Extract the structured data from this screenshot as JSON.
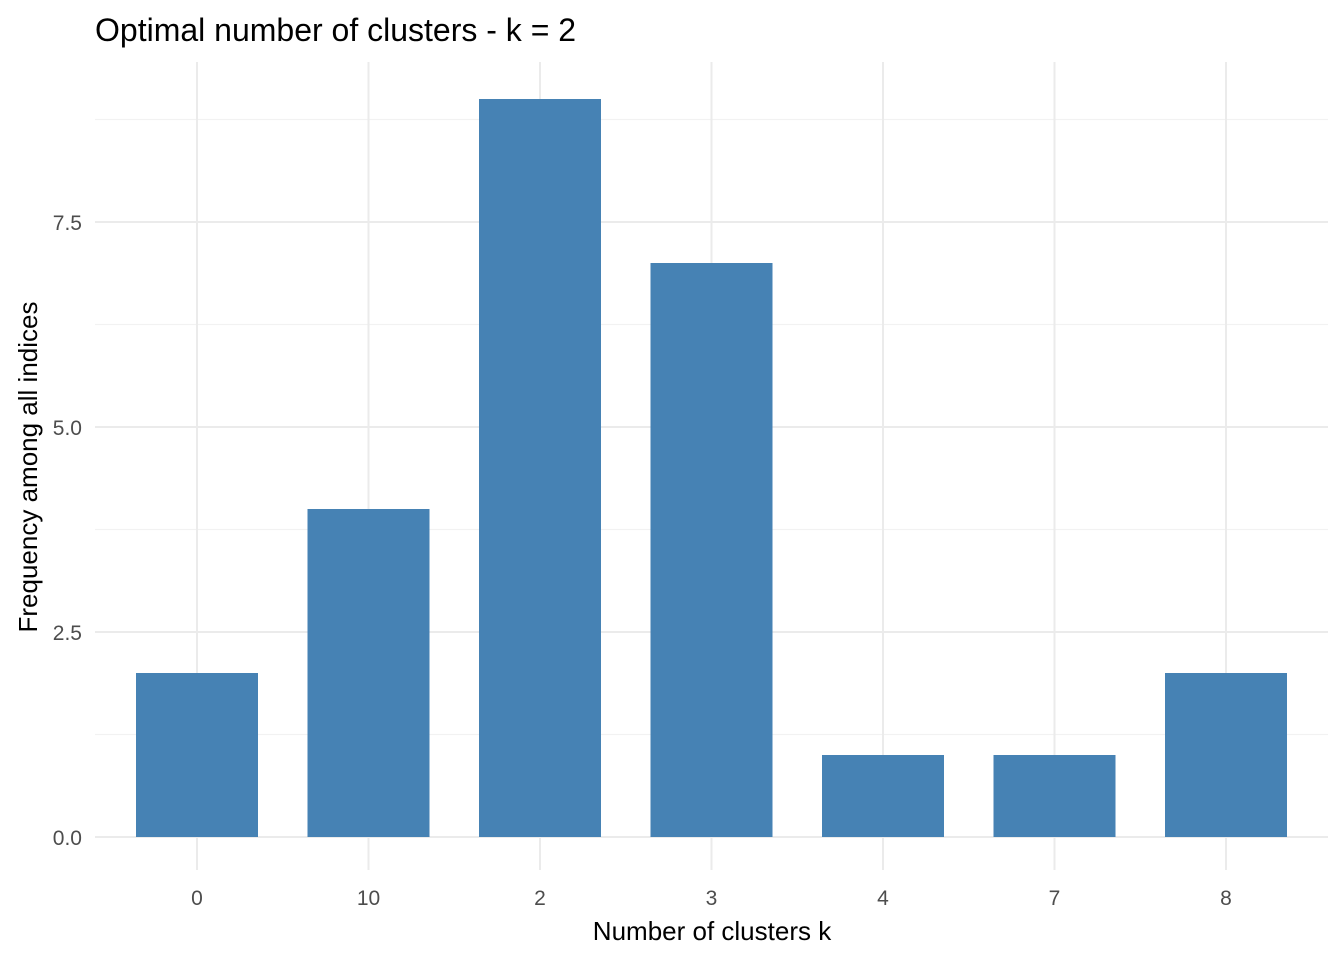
{
  "chart_data": {
    "type": "bar",
    "title": "Optimal number of clusters - k = 2",
    "xlabel": "Number of clusters k",
    "ylabel": "Frequency among all indices",
    "categories": [
      "0",
      "10",
      "2",
      "3",
      "4",
      "7",
      "8"
    ],
    "values": [
      2,
      4,
      9,
      7,
      1,
      1,
      2
    ],
    "ylim": [
      0,
      9.45
    ],
    "yticks": [
      0,
      2.5,
      5,
      7.5
    ],
    "ytick_labels": [
      "0.0",
      "2.5",
      "5.0",
      "7.5"
    ],
    "grid": true,
    "legend": "none",
    "bar_color": "#4682B4"
  }
}
